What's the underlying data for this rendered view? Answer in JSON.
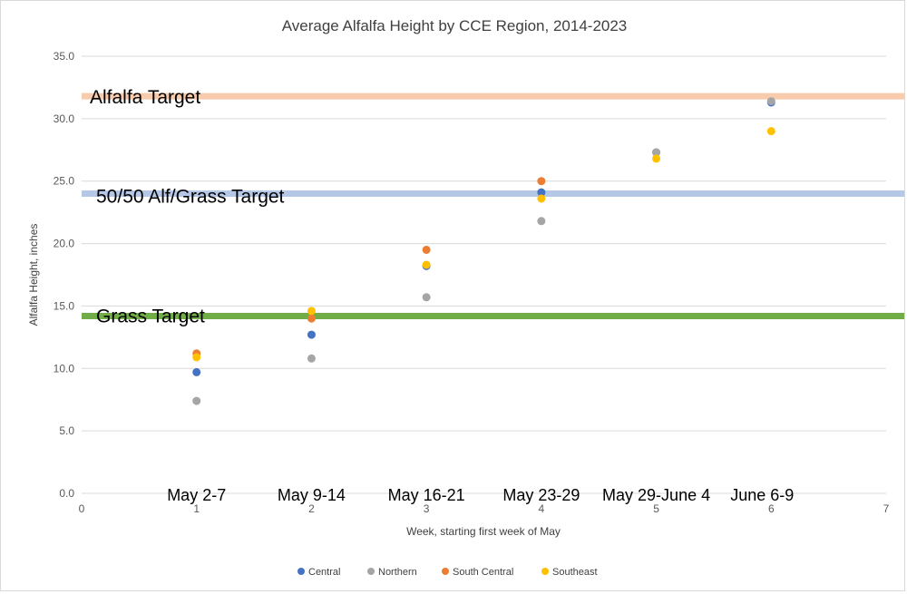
{
  "chart_data": {
    "type": "scatter",
    "title": "Average Alfalfa Height by CCE Region, 2014-2023",
    "xlabel": "Week, starting first week of May",
    "ylabel": "Alfalfa Height, inches",
    "xlim": [
      0,
      7
    ],
    "ylim": [
      0,
      35
    ],
    "x_ticks": [
      "0",
      "1",
      "2",
      "3",
      "4",
      "5",
      "6",
      "7"
    ],
    "y_ticks": [
      "0.0",
      "5.0",
      "10.0",
      "15.0",
      "20.0",
      "25.0",
      "30.0",
      "35.0"
    ],
    "grid": "horizontal",
    "legend_position": "bottom",
    "week_labels": [
      {
        "x": 1,
        "label": "May 2-7"
      },
      {
        "x": 2,
        "label": "May 9-14"
      },
      {
        "x": 3,
        "label": "May 16-21"
      },
      {
        "x": 4,
        "label": "May 23-29"
      },
      {
        "x": 5,
        "label": "May 29-June 4"
      },
      {
        "x": 6,
        "label": "June 6-9"
      }
    ],
    "targets": [
      {
        "label": "Alfalfa Target",
        "y": 31.8,
        "color": "#f8cbad"
      },
      {
        "label": "50/50 Alf/Grass Target",
        "y": 24.0,
        "color": "#b4c7e7"
      },
      {
        "label": "Grass Target",
        "y": 14.2,
        "color": "#70ad47"
      }
    ],
    "series": [
      {
        "name": "Central",
        "color": "#4472c4",
        "points": [
          [
            1,
            9.7
          ],
          [
            2,
            12.7
          ],
          [
            3,
            18.2
          ],
          [
            4,
            24.1
          ],
          [
            5,
            27.3
          ],
          [
            6,
            31.3
          ]
        ]
      },
      {
        "name": "Northern",
        "color": "#a5a5a5",
        "points": [
          [
            1,
            7.4
          ],
          [
            2,
            10.8
          ],
          [
            3,
            15.7
          ],
          [
            4,
            21.8
          ],
          [
            5,
            27.3
          ],
          [
            6,
            31.4
          ]
        ]
      },
      {
        "name": "South Central",
        "color": "#ed7d31",
        "points": [
          [
            1,
            11.2
          ],
          [
            2,
            14.0
          ],
          [
            3,
            19.5
          ],
          [
            4,
            25.0
          ]
        ]
      },
      {
        "name": "Southeast",
        "color": "#ffc000",
        "points": [
          [
            1,
            10.9
          ],
          [
            2,
            14.6
          ],
          [
            3,
            18.3
          ],
          [
            4,
            23.6
          ],
          [
            5,
            26.8
          ],
          [
            6,
            29.0
          ]
        ]
      }
    ]
  }
}
